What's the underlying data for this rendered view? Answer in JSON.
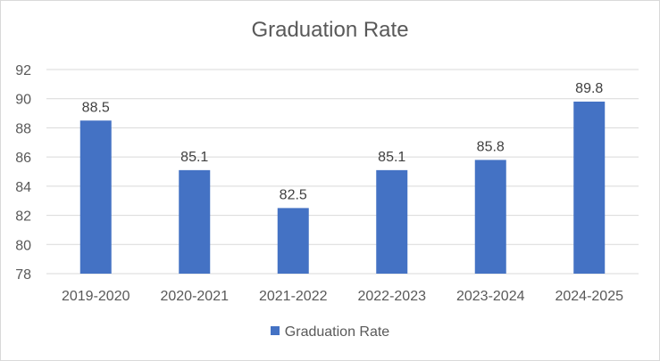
{
  "chart_data": {
    "type": "bar",
    "title": "Graduation Rate",
    "categories": [
      "2019-2020",
      "2020-2021",
      "2021-2022",
      "2022-2023",
      "2023-2024",
      "2024-2025"
    ],
    "series": [
      {
        "name": "Graduation Rate",
        "values": [
          88.5,
          85.1,
          82.5,
          85.1,
          85.8,
          89.8
        ],
        "color": "#4472c4"
      }
    ],
    "data_labels": [
      "88.5",
      "85.1",
      "82.5",
      "85.1",
      "85.8",
      "89.8"
    ],
    "xlabel": "",
    "ylabel": "",
    "ylim": [
      78,
      92
    ],
    "yticks": [
      "78",
      "80",
      "82",
      "84",
      "86",
      "88",
      "90",
      "92"
    ],
    "grid": true,
    "legend_position": "bottom"
  },
  "legend": {
    "label": "Graduation Rate",
    "color": "#4472c4"
  }
}
